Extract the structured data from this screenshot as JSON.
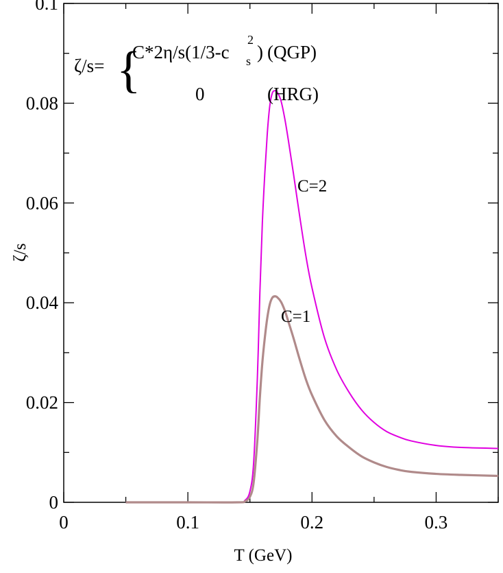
{
  "chart_data": {
    "type": "line",
    "xlabel": "T (GeV)",
    "ylabel": "ζ/s",
    "xlim": [
      0,
      0.35
    ],
    "ylim": [
      0,
      0.1
    ],
    "x_ticks": [
      "0",
      "0.1",
      "0.2",
      "0.3"
    ],
    "y_ticks": [
      "0",
      "0.02",
      "0.04",
      "0.06",
      "0.08",
      "0.1"
    ],
    "grid": false,
    "legend": "none",
    "annotation": {
      "lhs": "ζ/s=",
      "qgp_expr": "C*2η/s(1/3-c",
      "cs_sub": "s",
      "cs_sup": "2",
      "qgp_close": ")",
      "qgp_label": "(QGP)",
      "hrg_expr": "0",
      "hrg_label": "(HRG)"
    },
    "series": [
      {
        "name": "C=2",
        "color": "#e000e0",
        "x": [
          0.05,
          0.1,
          0.14,
          0.146,
          0.15,
          0.153,
          0.156,
          0.158,
          0.16,
          0.162,
          0.164,
          0.166,
          0.168,
          0.17,
          0.172,
          0.175,
          0.178,
          0.181,
          0.185,
          0.19,
          0.195,
          0.2,
          0.21,
          0.22,
          0.23,
          0.24,
          0.25,
          0.26,
          0.27,
          0.28,
          0.3,
          0.32,
          0.35
        ],
        "y": [
          0.0,
          0.0,
          0.0,
          0.0004,
          0.0022,
          0.008,
          0.025,
          0.042,
          0.056,
          0.066,
          0.074,
          0.0795,
          0.082,
          0.0825,
          0.0822,
          0.0805,
          0.077,
          0.0725,
          0.066,
          0.0575,
          0.0495,
          0.043,
          0.033,
          0.0265,
          0.022,
          0.0185,
          0.016,
          0.0142,
          0.0131,
          0.0123,
          0.0114,
          0.011,
          0.0108
        ]
      },
      {
        "name": "C=1",
        "color": "#b08a8a",
        "x": [
          0.05,
          0.1,
          0.14,
          0.146,
          0.15,
          0.153,
          0.156,
          0.158,
          0.16,
          0.162,
          0.164,
          0.166,
          0.168,
          0.17,
          0.172,
          0.175,
          0.178,
          0.181,
          0.185,
          0.19,
          0.195,
          0.2,
          0.21,
          0.22,
          0.23,
          0.24,
          0.25,
          0.26,
          0.27,
          0.28,
          0.3,
          0.32,
          0.35
        ],
        "y": [
          0.0,
          0.0,
          0.0,
          0.0002,
          0.0011,
          0.004,
          0.0125,
          0.021,
          0.028,
          0.033,
          0.037,
          0.0397,
          0.041,
          0.0413,
          0.0411,
          0.0402,
          0.0385,
          0.0362,
          0.033,
          0.0287,
          0.0247,
          0.0215,
          0.0165,
          0.0132,
          0.011,
          0.0092,
          0.008,
          0.0071,
          0.0065,
          0.0061,
          0.0057,
          0.0055,
          0.0053
        ]
      }
    ]
  }
}
